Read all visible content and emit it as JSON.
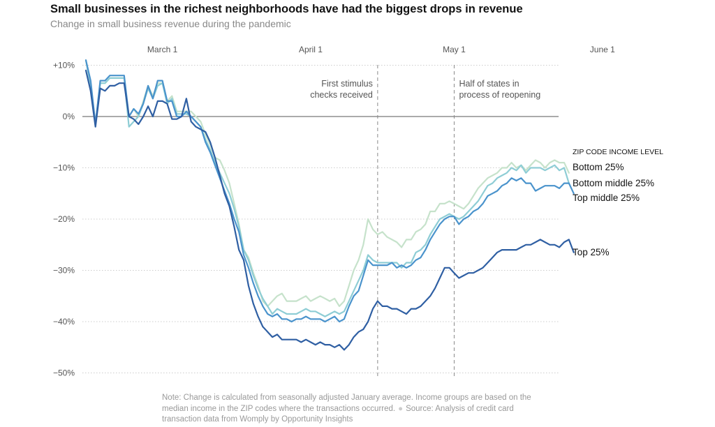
{
  "chart_data": {
    "type": "line",
    "title": "Small businesses in the richest neighborhoods have had the biggest drops in revenue",
    "subtitle": "Change in small business revenue during the pandemic",
    "x_start": "2020-02-14",
    "x_tick_labels": [
      {
        "label": "March 1",
        "date": "2020-03-01"
      },
      {
        "label": "April 1",
        "date": "2020-04-01"
      },
      {
        "label": "May 1",
        "date": "2020-05-01"
      },
      {
        "label": "June 1",
        "date": "2020-06-01"
      }
    ],
    "y_ticks": [
      10,
      0,
      -10,
      -20,
      -30,
      -40,
      -50
    ],
    "y_tick_labels": [
      "+10%",
      "0%",
      "−10%",
      "−20%",
      "−30%",
      "−40%",
      "−50%"
    ],
    "ylim": [
      -50,
      10
    ],
    "grid": "dotted horizontal",
    "annotations": [
      {
        "date": "2020-04-15",
        "lines": [
          "First stimulus",
          "checks received"
        ],
        "align": "right"
      },
      {
        "date": "2020-05-01",
        "lines": [
          "Half of states in",
          "process of reopening"
        ],
        "align": "left"
      }
    ],
    "legend_title": "ZIP CODE INCOME LEVEL",
    "series": [
      {
        "name": "Bottom 25%",
        "color": "#c6e2cb",
        "values": [
          11,
          6,
          -1.5,
          6.5,
          6.5,
          7.5,
          7.5,
          7.5,
          7.5,
          0,
          1.5,
          0,
          3,
          6,
          4,
          6.5,
          6.5,
          3,
          4,
          1,
          1,
          1,
          1,
          0,
          -1,
          -3.5,
          -5.5,
          -8,
          -8.5,
          -10.5,
          -13,
          -17,
          -21,
          -26,
          -27.5,
          -30.5,
          -33,
          -36,
          -37,
          -36,
          -35,
          -34.5,
          -36,
          -36,
          -36,
          -35.5,
          -35,
          -36,
          -35.5,
          -35,
          -35.5,
          -36,
          -35.5,
          -37,
          -36,
          -33,
          -30,
          -28,
          -25,
          -20,
          -22,
          -23,
          -22.5,
          -23.5,
          -24,
          -24.5,
          -25.5,
          -24,
          -24,
          -22.5,
          -22,
          -21,
          -18.5,
          -18.5,
          -17,
          -17,
          -16.5,
          -17,
          -17.5,
          -18,
          -17,
          -15.5,
          -14,
          -13,
          -12,
          -11.5,
          -11,
          -10,
          -10,
          -9,
          -10,
          -9.5,
          -10.5,
          -9.5,
          -8.5,
          -9,
          -10,
          -9,
          -8.5,
          -9,
          -9,
          -11
        ]
      },
      {
        "name": "Bottom middle 25%",
        "color": "#8ecdd5",
        "values": [
          11,
          6,
          -1.5,
          6.5,
          6.5,
          7.5,
          7.5,
          7.5,
          7.5,
          -2,
          -1,
          0,
          2.5,
          5.5,
          3.5,
          6,
          6.5,
          2.5,
          3.5,
          0.5,
          0.5,
          0.5,
          0,
          -1,
          -2,
          -4.5,
          -6.5,
          -9,
          -11,
          -13,
          -15,
          -18,
          -21.5,
          -26,
          -28,
          -31,
          -33.5,
          -35.5,
          -37,
          -38.5,
          -37.5,
          -38,
          -38.5,
          -38.5,
          -38.5,
          -38,
          -37.5,
          -38,
          -38,
          -38.5,
          -39,
          -38.5,
          -38,
          -38.5,
          -38,
          -36,
          -34,
          -32,
          -30,
          -27,
          -28,
          -28.5,
          -28.5,
          -28.5,
          -28.5,
          -28.5,
          -29.5,
          -28.5,
          -28.5,
          -26.5,
          -26,
          -25,
          -23,
          -21.5,
          -20,
          -19.5,
          -19,
          -19.5,
          -20,
          -19.5,
          -18.5,
          -17.5,
          -16.5,
          -15,
          -13.5,
          -13,
          -12,
          -11.5,
          -11,
          -10,
          -10.5,
          -9.5,
          -11,
          -10,
          -10,
          -10,
          -10.5,
          -10,
          -9.5,
          -10.5,
          -10,
          -13
        ]
      },
      {
        "name": "Top middle 25%",
        "color": "#4a93cc",
        "values": [
          11,
          7,
          -1.5,
          7,
          7,
          8,
          8,
          8,
          8,
          0,
          1.5,
          0.5,
          2.5,
          6,
          3.5,
          7,
          7,
          3,
          3,
          0,
          0,
          1,
          0,
          -1,
          -2,
          -5,
          -7,
          -9.5,
          -12,
          -14.5,
          -17,
          -20,
          -22.5,
          -27,
          -29.5,
          -32.5,
          -35,
          -37,
          -38.5,
          -39,
          -38.5,
          -39.5,
          -39.5,
          -40,
          -39.5,
          -39.5,
          -39,
          -39.5,
          -39.5,
          -39.5,
          -40,
          -39.5,
          -39,
          -40,
          -39.5,
          -37,
          -35,
          -34,
          -31,
          -28,
          -29,
          -29,
          -29,
          -29,
          -28.5,
          -29.5,
          -29,
          -29.5,
          -29,
          -28,
          -27.5,
          -26,
          -24,
          -22.5,
          -21,
          -20,
          -19.5,
          -19.5,
          -21,
          -20,
          -19.5,
          -18.5,
          -18,
          -17,
          -15.5,
          -15,
          -14.5,
          -13.5,
          -13,
          -12,
          -12.5,
          -12,
          -13,
          -13,
          -14.5,
          -14,
          -13.5,
          -13.5,
          -13.5,
          -14,
          -13,
          -13,
          -15
        ]
      },
      {
        "name": "Top 25%",
        "color": "#2f5fa3",
        "values": [
          9,
          5,
          -2,
          5.5,
          5,
          6,
          6,
          6.5,
          6.5,
          0,
          -0.5,
          -1.5,
          0,
          2,
          0,
          3,
          3,
          2.5,
          -0.5,
          -0.5,
          0,
          3.5,
          -1,
          -2,
          -2.5,
          -3,
          -5,
          -8,
          -11.5,
          -15,
          -17.5,
          -21.5,
          -26,
          -28,
          -33,
          -36.5,
          -39,
          -41,
          -42,
          -43,
          -42.5,
          -43.5,
          -43.5,
          -43.5,
          -43.5,
          -44,
          -43.5,
          -44,
          -44.5,
          -44,
          -44.5,
          -44.5,
          -45,
          -44.5,
          -45.5,
          -44.5,
          -43,
          -42,
          -41.5,
          -40,
          -37.5,
          -36,
          -37,
          -37,
          -37.5,
          -37.5,
          -38,
          -38.5,
          -37.5,
          -37.5,
          -37,
          -36,
          -35,
          -33.5,
          -31.5,
          -29.5,
          -29.5,
          -30.5,
          -31.5,
          -31,
          -30.5,
          -30.5,
          -30,
          -29.5,
          -28.5,
          -27.5,
          -26.5,
          -26,
          -26,
          -26,
          -26,
          -25.5,
          -25,
          -25,
          -24.5,
          -24,
          -24.5,
          -25,
          -25,
          -25.5,
          -24.5,
          -24,
          -26.5
        ]
      }
    ]
  },
  "note": {
    "main": "Note: Change is calculated from seasonally adjusted January average. Income groups are based on the median income in the ZIP codes where the transactions occurred.",
    "source": "Source: Analysis of credit card transaction data from Womply by Opportunity Insights"
  }
}
